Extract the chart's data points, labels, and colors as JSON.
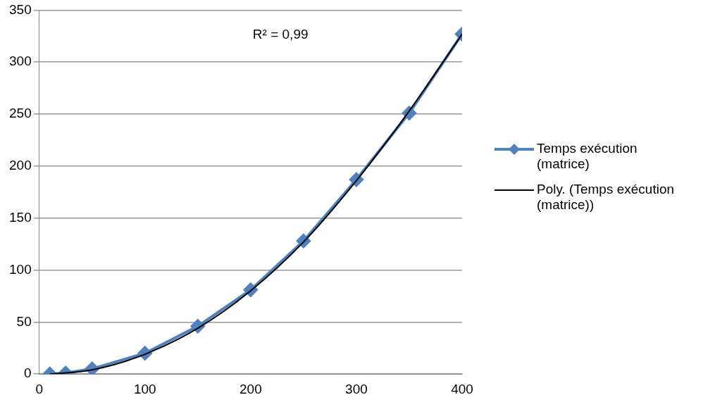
{
  "chart_data": {
    "type": "line",
    "annotations": [
      "R² = 0,99"
    ],
    "xlim": [
      0,
      400
    ],
    "xticks": [
      0,
      100,
      200,
      300,
      400
    ],
    "ylim": [
      0,
      350
    ],
    "yticks": [
      0,
      50,
      100,
      150,
      200,
      250,
      300,
      350
    ],
    "grid": "y",
    "legend": "right",
    "marker": "diamond",
    "series": [
      {
        "name": "Temps exécution (matrice)",
        "color": "#4f81bd",
        "x": [
          10,
          25,
          50,
          100,
          150,
          200,
          250,
          300,
          350,
          400
        ],
        "values": [
          0,
          1,
          5,
          20,
          46,
          81,
          128,
          187,
          251,
          327
        ]
      },
      {
        "name": "Poly. (Temps exécution (matrice))",
        "color": "#000000",
        "type": "line",
        "marker": "none",
        "x": [
          10,
          50,
          100,
          150,
          200,
          250,
          300,
          350,
          400
        ],
        "values": [
          0,
          4,
          19,
          44,
          80,
          127,
          186,
          253,
          327
        ]
      }
    ]
  }
}
